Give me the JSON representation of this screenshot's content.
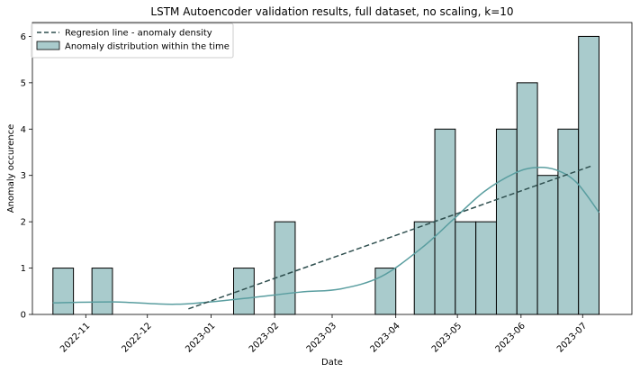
{
  "chart_data": {
    "type": "bar",
    "title": "LSTM Autoencoder validation results, full dataset, no scaling, k=10",
    "xlabel": "Date",
    "ylabel": "Anomaly occurence",
    "ylim": [
      0,
      6.3
    ],
    "xlim": [
      "2022-10-06",
      "2023-07-25"
    ],
    "y_ticks": [
      0,
      1,
      2,
      3,
      4,
      5,
      6
    ],
    "x_ticks": [
      "2022-11",
      "2022-12",
      "2023-01",
      "2023-02",
      "2023-03",
      "2023-04",
      "2023-05",
      "2023-06",
      "2023-07"
    ],
    "grid": false,
    "legend_position": "top-left",
    "legend": [
      {
        "label": "Regresion line - anomaly density",
        "kind": "dashed-line"
      },
      {
        "label": "Anomaly distribution within the time",
        "kind": "bar"
      }
    ],
    "bins": [
      {
        "start": "2022-10-16",
        "end": "2022-10-26",
        "count": 1
      },
      {
        "start": "2022-11-04",
        "end": "2022-11-14",
        "count": 1
      },
      {
        "start": "2023-01-12",
        "end": "2023-01-22",
        "count": 1
      },
      {
        "start": "2023-02-01",
        "end": "2023-02-11",
        "count": 2
      },
      {
        "start": "2023-03-22",
        "end": "2023-04-01",
        "count": 1
      },
      {
        "start": "2023-04-10",
        "end": "2023-04-20",
        "count": 2
      },
      {
        "start": "2023-04-20",
        "end": "2023-04-30",
        "count": 4
      },
      {
        "start": "2023-04-30",
        "end": "2023-05-10",
        "count": 2
      },
      {
        "start": "2023-05-10",
        "end": "2023-05-20",
        "count": 2
      },
      {
        "start": "2023-05-20",
        "end": "2023-05-30",
        "count": 4
      },
      {
        "start": "2023-05-30",
        "end": "2023-06-09",
        "count": 5
      },
      {
        "start": "2023-06-09",
        "end": "2023-06-19",
        "count": 3
      },
      {
        "start": "2023-06-19",
        "end": "2023-06-29",
        "count": 4
      },
      {
        "start": "2023-06-29",
        "end": "2023-07-09",
        "count": 6
      }
    ],
    "regression_line": {
      "x": [
        "2022-12-21",
        "2023-07-05"
      ],
      "y": [
        0.12,
        3.2
      ]
    },
    "kde": {
      "x": [
        "2022-10-16",
        "2022-11-15",
        "2022-12-15",
        "2023-01-14",
        "2023-02-13",
        "2023-03-05",
        "2023-03-25",
        "2023-04-14",
        "2023-04-29",
        "2023-05-14",
        "2023-05-29",
        "2023-06-08",
        "2023-06-18",
        "2023-06-28",
        "2023-07-09"
      ],
      "y": [
        0.25,
        0.27,
        0.22,
        0.33,
        0.48,
        0.55,
        0.82,
        1.45,
        2.05,
        2.65,
        3.05,
        3.17,
        3.12,
        2.85,
        2.2
      ]
    },
    "colors": {
      "bar_fill": "#a9cbcc",
      "bar_edge": "#000000",
      "kde_line": "#5a9ea0",
      "regression_line": "#2f4f4f"
    }
  }
}
